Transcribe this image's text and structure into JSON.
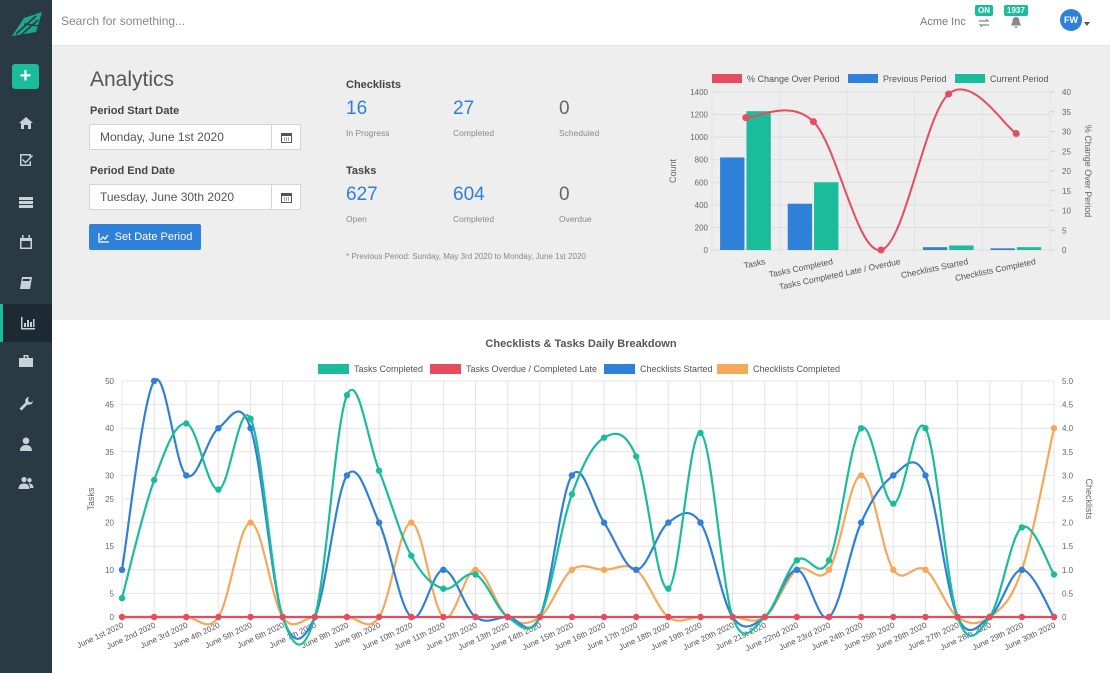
{
  "app": {
    "search_placeholder": "Search for something...",
    "company": "Acme Inc",
    "badge_on": "ON",
    "badge_count": "1937",
    "avatar_initials": "FW"
  },
  "sidebar": {
    "items": [
      {
        "icon": "home-icon"
      },
      {
        "icon": "check-square-icon"
      },
      {
        "icon": "server-icon"
      },
      {
        "icon": "calendar-icon"
      },
      {
        "icon": "book-icon"
      },
      {
        "icon": "bar-chart-icon",
        "active": true
      },
      {
        "icon": "briefcase-icon"
      },
      {
        "icon": "wrench-icon"
      },
      {
        "icon": "user-icon"
      },
      {
        "icon": "users-icon"
      }
    ]
  },
  "analytics": {
    "title": "Analytics",
    "start_label": "Period Start Date",
    "start_value": "Monday, June 1st 2020",
    "end_label": "Period End Date",
    "end_value": "Tuesday, June 30th 2020",
    "set_button": "Set Date Period"
  },
  "stats": {
    "checklists_title": "Checklists",
    "checklists": [
      {
        "value": "16",
        "label": "In Progress"
      },
      {
        "value": "27",
        "label": "Completed"
      },
      {
        "value": "0",
        "label": "Scheduled"
      }
    ],
    "tasks_title": "Tasks",
    "tasks": [
      {
        "value": "627",
        "label": "Open"
      },
      {
        "value": "604",
        "label": "Completed"
      },
      {
        "value": "0",
        "label": "Overdue"
      }
    ],
    "note": "* Previous Period: Sunday, May 3rd 2020 to Monday, June 1st 2020"
  },
  "chart_data": [
    {
      "type": "bar",
      "legend": [
        "% Change Over Period",
        "Previous Period",
        "Current Period"
      ],
      "categories": [
        "Tasks",
        "Tasks Completed",
        "Tasks Completed Late / Overdue",
        "Checklists Started",
        "Checklists Completed"
      ],
      "series": [
        {
          "name": "Previous Period",
          "color": "#2f80d8",
          "values": [
            820,
            410,
            0,
            25,
            15
          ]
        },
        {
          "name": "Current Period",
          "color": "#1abc9c",
          "values": [
            1230,
            600,
            0,
            40,
            25
          ]
        },
        {
          "name": "% Change Over Period",
          "type": "line",
          "axis": "right",
          "color": "#e74c5e",
          "values": [
            33.5,
            32.5,
            0,
            39.5,
            29.5
          ]
        }
      ],
      "ylabel": "Count",
      "ylim": [
        0,
        1400
      ],
      "yticks": [
        "0",
        "200",
        "400",
        "600",
        "800",
        "1000",
        "1200",
        "1400"
      ],
      "y2label": "% Change Over Period",
      "y2lim": [
        0,
        40
      ],
      "y2ticks": [
        "0",
        "5",
        "10",
        "15",
        "20",
        "25",
        "30",
        "35",
        "40"
      ]
    },
    {
      "type": "line",
      "title": "Checklists & Tasks Daily Breakdown",
      "legend": [
        "Tasks Completed",
        "Tasks Overdue / Completed Late",
        "Checklists Started",
        "Checklists Completed"
      ],
      "categories": [
        "June 1st 2020",
        "June 2nd 2020",
        "June 3rd 2020",
        "June 4th 2020",
        "June 5th 2020",
        "June 6th 2020",
        "June 7th 2020",
        "June 8th 2020",
        "June 9th 2020",
        "June 10th 2020",
        "June 11th 2020",
        "June 12th 2020",
        "June 13th 2020",
        "June 14th 2020",
        "June 15th 2020",
        "June 16th 2020",
        "June 17th 2020",
        "June 18th 2020",
        "June 19th 2020",
        "June 20th 2020",
        "June 21st 2020",
        "June 22nd 2020",
        "June 23rd 2020",
        "June 24th 2020",
        "June 25th 2020",
        "June 26th 2020",
        "June 27th 2020",
        "June 28th 2020",
        "June 29th 2020",
        "June 30th 2020"
      ],
      "series": [
        {
          "name": "Tasks Completed",
          "axis": "left",
          "color": "#1abc9c",
          "values": [
            4,
            29,
            41,
            27,
            42,
            0,
            0,
            47,
            31,
            13,
            6,
            9,
            0,
            0,
            26,
            38,
            34,
            6,
            39,
            0,
            0,
            12,
            12,
            40,
            24,
            40,
            0,
            0,
            19,
            9
          ]
        },
        {
          "name": "Tasks Overdue / Completed Late",
          "axis": "left",
          "color": "#e74c5e",
          "values": [
            0,
            0,
            0,
            0,
            0,
            0,
            0,
            0,
            0,
            0,
            0,
            0,
            0,
            0,
            0,
            0,
            0,
            0,
            0,
            0,
            0,
            0,
            0,
            0,
            0,
            0,
            0,
            0,
            0,
            0
          ]
        },
        {
          "name": "Checklists Started",
          "axis": "right",
          "color": "#2f80d8",
          "values": [
            1,
            5,
            3,
            4,
            4,
            0,
            0,
            3,
            2,
            0,
            1,
            0,
            0,
            0,
            3,
            2,
            1,
            2,
            2,
            0,
            0,
            1,
            0,
            2,
            3,
            3,
            0,
            0,
            1,
            0
          ]
        },
        {
          "name": "Checklists Completed",
          "axis": "right",
          "color": "#f5a85a",
          "values": [
            0,
            0,
            0,
            0,
            2,
            0,
            0,
            0,
            0,
            2,
            0,
            1,
            0,
            0,
            1,
            1,
            1,
            0,
            0,
            0,
            0,
            1,
            1,
            3,
            1,
            1,
            0,
            0,
            1,
            4
          ]
        }
      ],
      "ylabel": "Tasks",
      "ylim": [
        0,
        50
      ],
      "yticks": [
        "0",
        "5",
        "10",
        "15",
        "20",
        "25",
        "30",
        "35",
        "40",
        "45",
        "50"
      ],
      "y2label": "Checklists",
      "y2lim": [
        0,
        5
      ],
      "y2ticks": [
        "0",
        "0.5",
        "1.0",
        "1.5",
        "2.0",
        "2.5",
        "3.0",
        "3.5",
        "4.0",
        "4.5",
        "5.0"
      ],
      "grid": true
    }
  ]
}
